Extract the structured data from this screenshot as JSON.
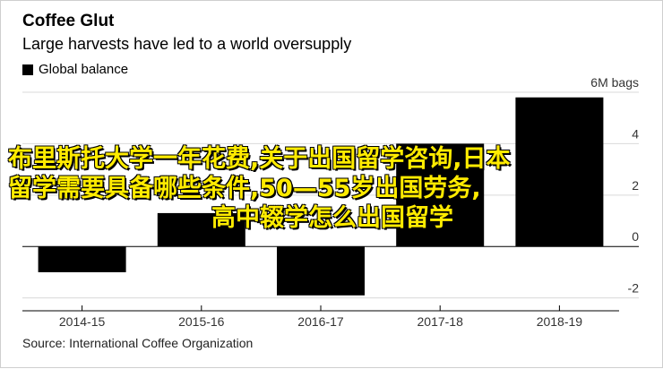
{
  "header": {
    "title": "Coffee Glut",
    "subtitle": "Large harvests have led to a world oversupply"
  },
  "legend": {
    "label": "Global balance"
  },
  "footer": {
    "source": "Source: International Coffee Organization"
  },
  "overlay": {
    "line1": "布里斯托大学一年花费,关于出国留学咨询,日本",
    "line2": "留学需要具备哪些条件,50—55岁出国劳务,",
    "line3": "高中辍学怎么出国留学",
    "color": "#ffeb00"
  },
  "chart_data": {
    "type": "bar",
    "title": "Coffee Glut",
    "subtitle": "Large harvests have led to a world oversupply",
    "categories": [
      "2014-15",
      "2015-16",
      "2016-17",
      "2017-18",
      "2018-19"
    ],
    "series": [
      {
        "name": "Global balance",
        "values": [
          -1.0,
          1.3,
          -1.9,
          4.0,
          5.8
        ],
        "color": "#000000"
      }
    ],
    "ylim": [
      -2.5,
      6
    ],
    "yticks": [
      -2,
      0,
      2,
      4,
      6
    ],
    "ytick_labels": [
      "-2",
      "0",
      "2",
      "4",
      "6M bags"
    ],
    "xlabel": "",
    "ylabel": "",
    "grid": true,
    "legend_position": "top-left"
  }
}
